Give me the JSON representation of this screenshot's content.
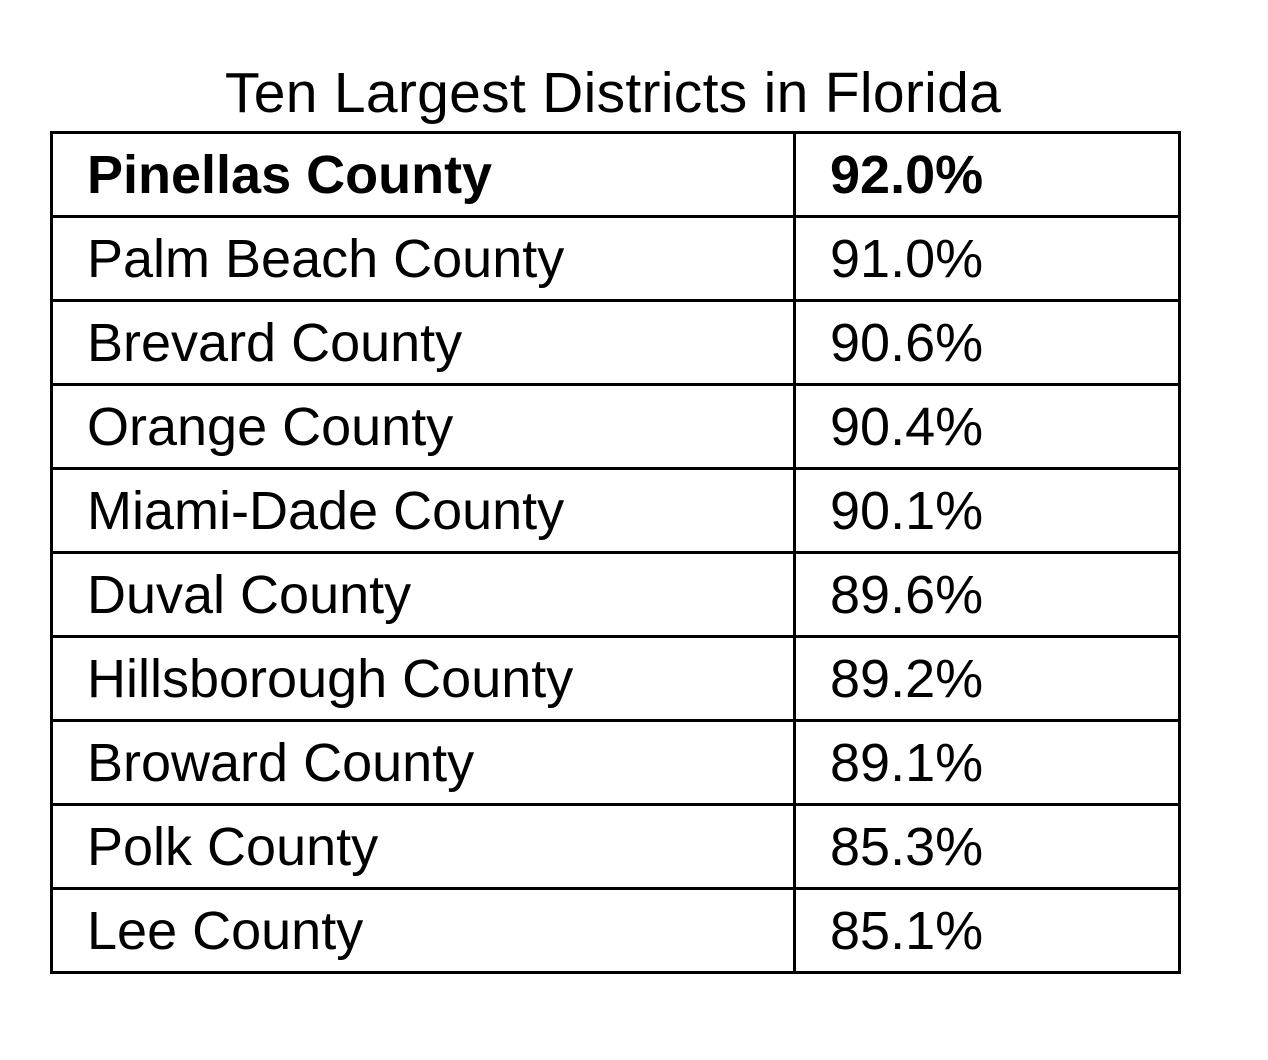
{
  "title": "Ten Largest Districts in Florida",
  "rows": [
    {
      "district": "Pinellas County",
      "rate": "92.0%",
      "bold": true
    },
    {
      "district": "Palm Beach County",
      "rate": "91.0%",
      "bold": false
    },
    {
      "district": "Brevard County",
      "rate": "90.6%",
      "bold": false
    },
    {
      "district": "Orange County",
      "rate": "90.4%",
      "bold": false
    },
    {
      "district": "Miami-Dade County",
      "rate": "90.1%",
      "bold": false
    },
    {
      "district": "Duval County",
      "rate": "89.6%",
      "bold": false
    },
    {
      "district": "Hillsborough County",
      "rate": "89.2%",
      "bold": false
    },
    {
      "district": "Broward County",
      "rate": "89.1%",
      "bold": false
    },
    {
      "district": "Polk County",
      "rate": "85.3%",
      "bold": false
    },
    {
      "district": "Lee County",
      "rate": "85.1%",
      "bold": false
    }
  ]
}
